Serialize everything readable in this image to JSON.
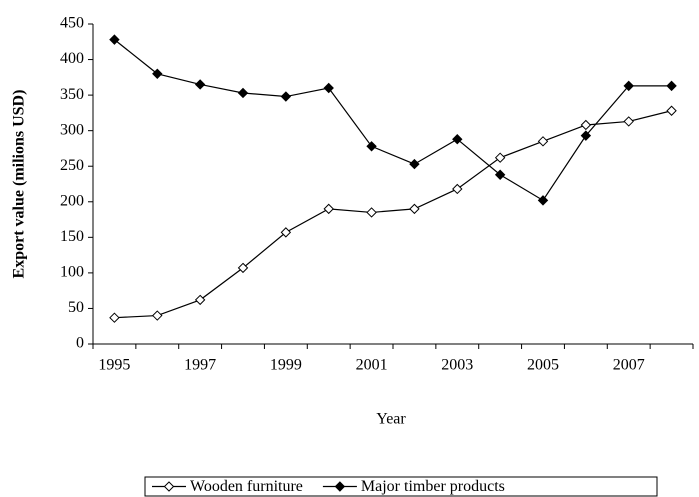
{
  "chart_data": {
    "type": "line",
    "x_label": "Year",
    "y_label": "Export value (milions USD)",
    "categories": [
      "1995",
      null,
      "1997",
      null,
      "1999",
      null,
      "2001",
      null,
      "2003",
      null,
      "2005",
      null,
      "2007",
      null
    ],
    "series": [
      {
        "name": "Wooden furniture",
        "color": "#000000",
        "marker": "open-diamond",
        "values": [
          37,
          40,
          62,
          107,
          157,
          190,
          185,
          190,
          218,
          262,
          285,
          308,
          313,
          328
        ]
      },
      {
        "name": "Major timber products",
        "color": "#000000",
        "marker": "filled-diamond",
        "values": [
          428,
          380,
          365,
          353,
          348,
          360,
          278,
          253,
          288,
          238,
          202,
          293,
          363,
          363
        ]
      }
    ],
    "ylim": [
      0,
      450
    ],
    "yticks": [
      0,
      50,
      100,
      150,
      200,
      250,
      300,
      350,
      400,
      450
    ],
    "grid": false,
    "legend": "bottom"
  }
}
